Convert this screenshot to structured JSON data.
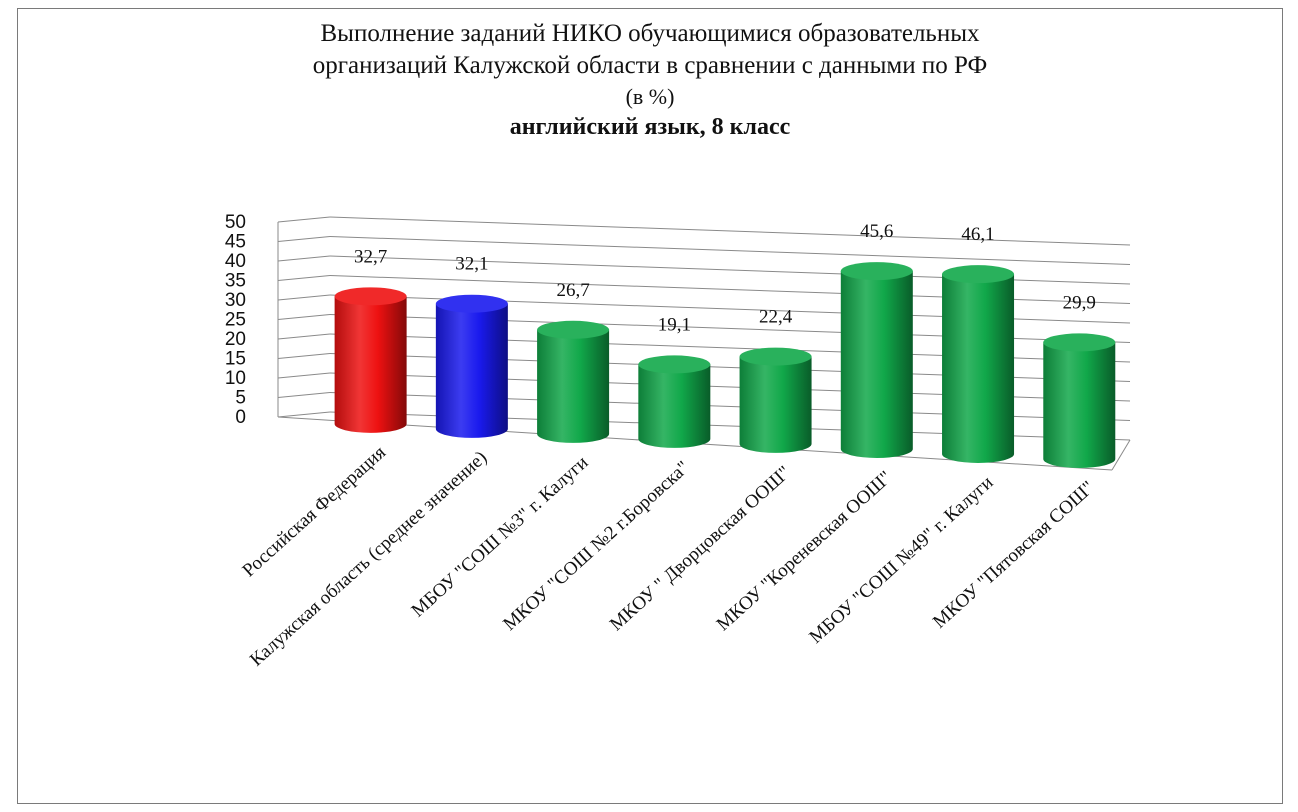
{
  "chart_data": {
    "type": "bar",
    "title_lines": [
      "Выполнение заданий НИКО обучающимися образовательных",
      "организаций Калужской области в сравнении с данными по РФ",
      "(в %)"
    ],
    "subtitle": "английский язык, 8 класс",
    "categories": [
      "Российская Федерация",
      "Калужская область (среднее значение)",
      "МБОУ \"СОШ №3\" г. Калуги",
      "МКОУ \"СОШ №2 г.Боровска\"",
      "МКОУ \" Дворцовская ООШ\"",
      "МКОУ \"Кореневская ООШ\"",
      "МБОУ \"СОШ №49\" г. Калуги",
      "МКОУ \"Пятовская СОШ\""
    ],
    "values": [
      32.7,
      32.1,
      26.7,
      19.1,
      22.4,
      45.6,
      46.1,
      29.9
    ],
    "value_labels": [
      "32,7",
      "32,1",
      "26,7",
      "19,1",
      "22,4",
      "45,6",
      "46,1",
      "29,9"
    ],
    "colors": [
      "#ee1111",
      "#1a1aee",
      "#11a84a",
      "#11a84a",
      "#11a84a",
      "#11a84a",
      "#11a84a",
      "#11a84a"
    ],
    "ylim": [
      0,
      50
    ],
    "yticks": [
      "0",
      "5",
      "10",
      "15",
      "20",
      "25",
      "30",
      "35",
      "40",
      "45",
      "50"
    ],
    "grid": true,
    "style": "3d-cylinder"
  }
}
